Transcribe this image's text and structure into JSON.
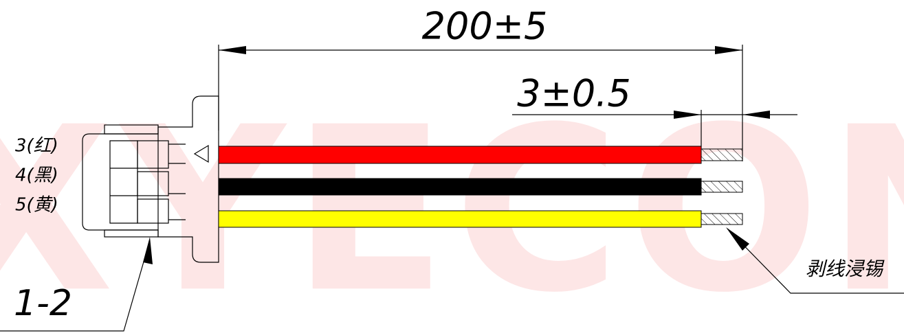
{
  "watermark": "XYECON",
  "dimensions": {
    "overall_length": "200±5",
    "strip_length": "3±0.5"
  },
  "wires": [
    {
      "label": "3(红)"
    },
    {
      "label": "4(黑)"
    },
    {
      "label": "5(黄)"
    }
  ],
  "connector_label": "1-2",
  "strip_note": "剥线浸锡"
}
